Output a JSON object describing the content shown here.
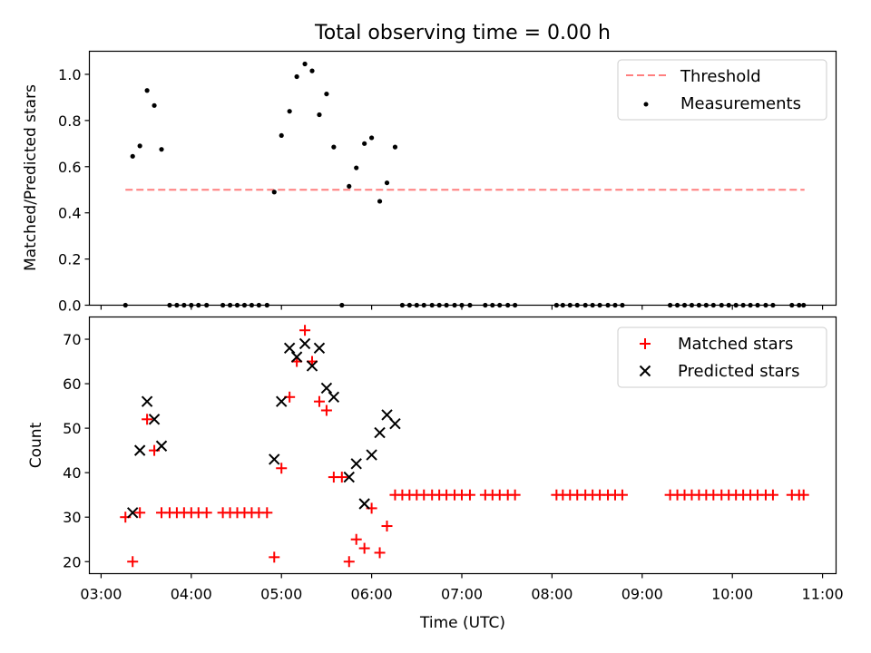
{
  "title": "Total observing time = 0.00 h",
  "colors": {
    "threshold": "#ff7f7f",
    "measurement": "#000000",
    "matched": "#ff0000",
    "predicted": "#000000"
  },
  "chart_data": [
    {
      "type": "scatter",
      "ylabel": "Matched/Predicted stars",
      "ylim": [
        0,
        1.1
      ],
      "yticks": [
        "0.0",
        "0.2",
        "0.4",
        "0.6",
        "0.8",
        "1.0"
      ],
      "grid": false,
      "legend": "top-right",
      "legend_entries": [
        "Threshold",
        "Measurements"
      ],
      "threshold": {
        "name": "Threshold",
        "value": 0.5,
        "x_range": [
          3.27,
          10.8
        ]
      },
      "series": [
        {
          "name": "Measurements",
          "x": [
            3.27,
            3.35,
            3.43,
            3.51,
            3.59,
            3.67,
            3.76,
            3.84,
            3.92,
            4.0,
            4.08,
            4.17,
            4.35,
            4.43,
            4.51,
            4.59,
            4.67,
            4.75,
            4.84,
            4.92,
            5.0,
            5.09,
            5.17,
            5.26,
            5.34,
            5.42,
            5.5,
            5.58,
            5.67,
            5.75,
            5.83,
            5.92,
            6.0,
            6.09,
            6.17,
            6.26,
            6.34,
            6.42,
            6.5,
            6.58,
            6.67,
            6.75,
            6.83,
            6.92,
            7.0,
            7.09,
            7.26,
            7.34,
            7.42,
            7.51,
            7.59,
            8.05,
            8.12,
            8.2,
            8.28,
            8.37,
            8.45,
            8.53,
            8.62,
            8.7,
            8.78,
            9.31,
            9.39,
            9.47,
            9.55,
            9.63,
            9.71,
            9.79,
            9.88,
            9.96,
            10.04,
            10.12,
            10.2,
            10.28,
            10.37,
            10.45,
            10.66,
            10.74,
            10.79
          ],
          "y": [
            0,
            0.645,
            0.69,
            0.93,
            0.865,
            0.675,
            0,
            0,
            0,
            0,
            0,
            0,
            0,
            0,
            0,
            0,
            0,
            0,
            0,
            0.49,
            0.735,
            0.84,
            0.99,
            1.045,
            1.015,
            0.825,
            0.915,
            0.685,
            0,
            0.515,
            0.595,
            0.7,
            0.725,
            0.45,
            0.53,
            0.685,
            0,
            0,
            0,
            0,
            0,
            0,
            0,
            0,
            0,
            0,
            0,
            0,
            0,
            0,
            0,
            0,
            0,
            0,
            0,
            0,
            0,
            0,
            0,
            0,
            0,
            0,
            0,
            0,
            0,
            0,
            0,
            0,
            0,
            0,
            0,
            0,
            0,
            0,
            0,
            0,
            0,
            0,
            0
          ]
        }
      ]
    },
    {
      "type": "scatter",
      "xlabel": "Time (UTC)",
      "ylabel": "Count",
      "xlim": [
        2.87,
        11.15
      ],
      "xticks": [
        "03:00",
        "04:00",
        "05:00",
        "06:00",
        "07:00",
        "08:00",
        "09:00",
        "10:00",
        "11:00"
      ],
      "ylim": [
        17.3,
        75
      ],
      "yticks": [
        "20",
        "30",
        "40",
        "50",
        "60",
        "70"
      ],
      "grid": false,
      "legend": "top-right",
      "legend_entries": [
        "Matched stars",
        "Predicted stars"
      ],
      "series": [
        {
          "name": "Matched stars",
          "x": [
            3.27,
            3.35,
            3.43,
            3.51,
            3.59,
            3.67,
            3.76,
            3.84,
            3.92,
            4.0,
            4.08,
            4.17,
            4.35,
            4.43,
            4.51,
            4.59,
            4.67,
            4.75,
            4.84,
            4.92,
            5.0,
            5.09,
            5.17,
            5.26,
            5.34,
            5.42,
            5.5,
            5.58,
            5.67,
            5.75,
            5.83,
            5.92,
            6.0,
            6.09,
            6.17,
            6.26,
            6.34,
            6.42,
            6.5,
            6.58,
            6.67,
            6.75,
            6.83,
            6.92,
            7.0,
            7.09,
            7.26,
            7.34,
            7.42,
            7.51,
            7.59,
            8.05,
            8.12,
            8.2,
            8.28,
            8.37,
            8.45,
            8.53,
            8.62,
            8.7,
            8.78,
            9.31,
            9.39,
            9.47,
            9.55,
            9.63,
            9.71,
            9.79,
            9.88,
            9.96,
            10.04,
            10.12,
            10.2,
            10.28,
            10.37,
            10.45,
            10.66,
            10.74,
            10.79
          ],
          "y": [
            30,
            20,
            31,
            52,
            45,
            31,
            31,
            31,
            31,
            31,
            31,
            31,
            31,
            31,
            31,
            31,
            31,
            31,
            31,
            21,
            41,
            57,
            65,
            72,
            65,
            56,
            54,
            39,
            39,
            20,
            25,
            23,
            32,
            22,
            28,
            35,
            35,
            35,
            35,
            35,
            35,
            35,
            35,
            35,
            35,
            35,
            35,
            35,
            35,
            35,
            35,
            35,
            35,
            35,
            35,
            35,
            35,
            35,
            35,
            35,
            35,
            35,
            35,
            35,
            35,
            35,
            35,
            35,
            35,
            35,
            35,
            35,
            35,
            35,
            35,
            35,
            35,
            35,
            35
          ]
        },
        {
          "name": "Predicted stars",
          "x": [
            3.35,
            3.43,
            3.51,
            3.59,
            3.67,
            4.92,
            5.0,
            5.09,
            5.17,
            5.26,
            5.34,
            5.42,
            5.5,
            5.58,
            5.75,
            5.83,
            5.92,
            6.0,
            6.09,
            6.17,
            6.26
          ],
          "y": [
            31,
            45,
            56,
            52,
            46,
            43,
            56,
            68,
            66,
            69,
            64,
            68,
            59,
            57,
            39,
            42,
            33,
            44,
            49,
            53,
            51
          ]
        }
      ]
    }
  ]
}
